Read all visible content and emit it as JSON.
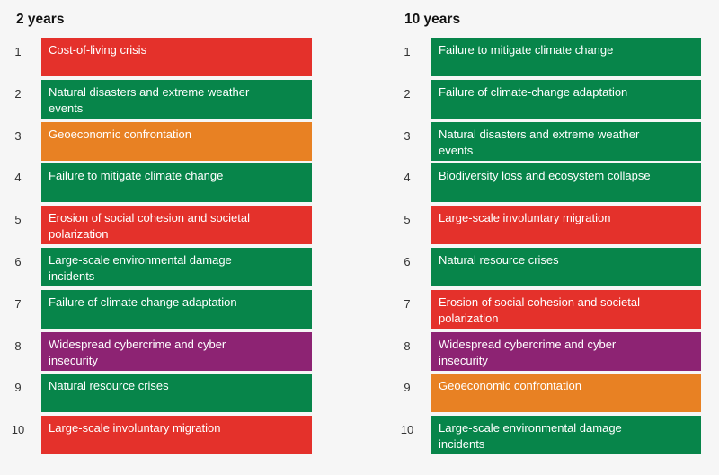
{
  "colors": {
    "red": "#e4312b",
    "green": "#07854a",
    "orange": "#e88123",
    "purple": "#8d2373"
  },
  "columns": [
    {
      "title": "2 years",
      "items": [
        {
          "rank": "1",
          "label": "Cost-of-living crisis",
          "color": "red"
        },
        {
          "rank": "2",
          "label": "Natural disasters and extreme weather events",
          "color": "green"
        },
        {
          "rank": "3",
          "label": "Geoeconomic confrontation",
          "color": "orange"
        },
        {
          "rank": "4",
          "label": "Failure to mitigate climate change",
          "color": "green"
        },
        {
          "rank": "5",
          "label": "Erosion of social cohesion and societal polarization",
          "color": "red"
        },
        {
          "rank": "6",
          "label": "Large-scale environmental damage incidents",
          "color": "green"
        },
        {
          "rank": "7",
          "label": "Failure of climate change adaptation",
          "color": "green"
        },
        {
          "rank": "8",
          "label": "Widespread cybercrime and cyber insecurity",
          "color": "purple"
        },
        {
          "rank": "9",
          "label": "Natural resource crises",
          "color": "green"
        },
        {
          "rank": "10",
          "label": "Large-scale involuntary migration",
          "color": "red"
        }
      ]
    },
    {
      "title": "10 years",
      "items": [
        {
          "rank": "1",
          "label": "Failure to mitigate climate change",
          "color": "green"
        },
        {
          "rank": "2",
          "label": "Failure of climate-change adaptation",
          "color": "green"
        },
        {
          "rank": "3",
          "label": "Natural disasters and extreme weather events",
          "color": "green"
        },
        {
          "rank": "4",
          "label": "Biodiversity loss and ecosystem collapse",
          "color": "green"
        },
        {
          "rank": "5",
          "label": "Large-scale involuntary migration",
          "color": "red"
        },
        {
          "rank": "6",
          "label": "Natural resource crises",
          "color": "green"
        },
        {
          "rank": "7",
          "label": "Erosion of social cohesion and societal polarization",
          "color": "red"
        },
        {
          "rank": "8",
          "label": "Widespread cybercrime and cyber insecurity",
          "color": "purple"
        },
        {
          "rank": "9",
          "label": "Geoeconomic confrontation",
          "color": "orange"
        },
        {
          "rank": "10",
          "label": "Large-scale environmental damage incidents",
          "color": "green"
        }
      ]
    }
  ]
}
